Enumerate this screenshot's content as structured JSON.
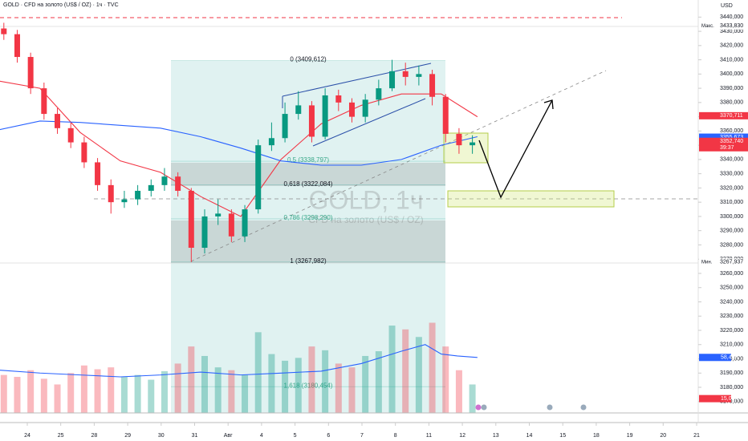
{
  "chart_data": {
    "type": "candlestick",
    "title": "GOLD · CFD на золото (US$ / OZ) · 1ч · TVC",
    "currency": "USD",
    "watermark": "GOLD, 1ч",
    "watermark_sub": "CFD на золото (US$ / OZ)",
    "up_color": "#089981",
    "down_color": "#f23645",
    "xlim": [
      -0.815,
      20.048
    ],
    "xticks": [
      {
        "value": 0,
        "label": "24"
      },
      {
        "value": 1,
        "label": "25"
      },
      {
        "value": 2,
        "label": "28"
      },
      {
        "value": 3,
        "label": "29"
      },
      {
        "value": 4,
        "label": "30"
      },
      {
        "value": 5,
        "label": "31"
      },
      {
        "value": 6,
        "label": "Авг"
      },
      {
        "value": 7,
        "label": "4"
      },
      {
        "value": 8,
        "label": "5"
      },
      {
        "value": 9,
        "label": "6"
      },
      {
        "value": 10,
        "label": "7"
      },
      {
        "value": 11,
        "label": "8"
      },
      {
        "value": 12,
        "label": "11"
      },
      {
        "value": 13,
        "label": "12"
      },
      {
        "value": 14,
        "label": "13"
      },
      {
        "value": 15,
        "label": "14"
      },
      {
        "value": 16,
        "label": "15"
      },
      {
        "value": 17,
        "label": "18"
      },
      {
        "value": 18,
        "label": "19"
      },
      {
        "value": 19,
        "label": "20"
      },
      {
        "value": 20,
        "label": "21"
      }
    ],
    "ylim": [
      3162,
      3452
    ],
    "yticks": [
      {
        "value": 3440,
        "label": "3440,000"
      },
      {
        "value": 3430,
        "label": "3430,000"
      },
      {
        "value": 3420,
        "label": "3420,000"
      },
      {
        "value": 3410,
        "label": "3410,000"
      },
      {
        "value": 3400,
        "label": "3400,000"
      },
      {
        "value": 3390,
        "label": "3390,000"
      },
      {
        "value": 3380,
        "label": "3380,000"
      },
      {
        "value": 3370,
        "label": "3370,000"
      },
      {
        "value": 3360,
        "label": "3360,000"
      },
      {
        "value": 3350,
        "label": "3350,000"
      },
      {
        "value": 3340,
        "label": "3340,000"
      },
      {
        "value": 3330,
        "label": "3330,000"
      },
      {
        "value": 3320,
        "label": "3320,000"
      },
      {
        "value": 3310,
        "label": "3310,000"
      },
      {
        "value": 3300,
        "label": "3300,000"
      },
      {
        "value": 3290,
        "label": "3290,000"
      },
      {
        "value": 3280,
        "label": "3280,000"
      },
      {
        "value": 3270,
        "label": "3270,000"
      },
      {
        "value": 3260,
        "label": "3260,000"
      },
      {
        "value": 3250,
        "label": "3250,000"
      },
      {
        "value": 3240,
        "label": "3240,000"
      },
      {
        "value": 3230,
        "label": "3230,000"
      },
      {
        "value": 3220,
        "label": "3220,000"
      },
      {
        "value": 3210,
        "label": "3210,000"
      },
      {
        "value": 3200,
        "label": "3200,000"
      },
      {
        "value": 3190,
        "label": "3190,000"
      },
      {
        "value": 3180,
        "label": "3180,000"
      },
      {
        "value": 3170,
        "label": "3170,000"
      }
    ],
    "x": [
      -0.7,
      -0.3,
      0.1,
      0.5,
      0.9,
      1.3,
      1.7,
      2.1,
      2.5,
      2.9,
      3.3,
      3.7,
      4.1,
      4.5,
      4.9,
      5.3,
      5.7,
      6.1,
      6.5,
      6.9,
      7.3,
      7.7,
      8.1,
      8.5,
      8.9,
      9.3,
      9.7,
      10.1,
      10.5,
      10.9,
      11.3,
      11.7,
      12.1,
      12.5,
      12.9,
      13.3
    ],
    "open": [
      3432,
      3428,
      3412,
      3390,
      3372,
      3362,
      3352,
      3338,
      3322,
      3310,
      3312,
      3318,
      3322,
      3328,
      3318,
      3278,
      3300,
      3302,
      3286,
      3305,
      3350,
      3355,
      3372,
      3378,
      3356,
      3385,
      3380,
      3370,
      3382,
      3390,
      3402,
      3398,
      3400,
      3384,
      3358,
      3350
    ],
    "high": [
      3436,
      3431,
      3415,
      3394,
      3376,
      3366,
      3356,
      3341,
      3326,
      3318,
      3322,
      3326,
      3334,
      3331,
      3320,
      3305,
      3312,
      3305,
      3308,
      3354,
      3366,
      3380,
      3388,
      3381,
      3390,
      3389,
      3383,
      3386,
      3396,
      3410,
      3408,
      3406,
      3403,
      3386,
      3362,
      3357
    ],
    "low": [
      3424,
      3408,
      3386,
      3368,
      3358,
      3348,
      3334,
      3318,
      3302,
      3306,
      3308,
      3314,
      3318,
      3314,
      3268,
      3274,
      3294,
      3282,
      3282,
      3302,
      3346,
      3352,
      3368,
      3352,
      3354,
      3374,
      3366,
      3366,
      3378,
      3388,
      3392,
      3392,
      3378,
      3352,
      3344,
      3344
    ],
    "close": [
      3428,
      3412,
      3390,
      3372,
      3362,
      3352,
      3338,
      3322,
      3310,
      3312,
      3318,
      3322,
      3328,
      3318,
      3278,
      3300,
      3302,
      3286,
      3305,
      3350,
      3355,
      3372,
      3378,
      3356,
      3385,
      3380,
      3370,
      3382,
      3390,
      3402,
      3398,
      3400,
      3384,
      3358,
      3350,
      3352
    ],
    "series": [
      {
        "color": "#f23645",
        "x": [
          -0.82,
          0.38,
          1.58,
          2.78,
          3.98,
          5.18,
          6.38,
          7.58,
          8.78,
          9.98,
          11.18,
          12.37,
          13.45
        ],
        "values": [
          3395,
          3390,
          3359,
          3339,
          3331,
          3314,
          3300,
          3340,
          3365,
          3378,
          3386,
          3386,
          3370
        ]
      },
      {
        "color": "#2962ff",
        "x": [
          -0.82,
          0.38,
          1.58,
          2.78,
          3.98,
          5.18,
          6.38,
          7.58,
          8.78,
          9.98,
          11.18,
          12.37,
          13.45
        ],
        "values": [
          3361,
          3367,
          3366,
          3364,
          3362,
          3356,
          3348,
          3339,
          3336,
          3336,
          3340,
          3350,
          3356
        ]
      }
    ],
    "price_labels": [
      {
        "value": 3433.83,
        "label": "3433,830",
        "color": "#ffffff",
        "text_color": "#131722",
        "prefix": "Макс."
      },
      {
        "value": 3370.711,
        "label": "3370,711",
        "color": "#f23645",
        "text_color": "#ffffff"
      },
      {
        "value": 3355.673,
        "label": "3355,673",
        "color": "#2962ff",
        "text_color": "#ffffff"
      },
      {
        "value": 3352.74,
        "label": "3352,740",
        "color": "#f23645",
        "text_color": "#ffffff",
        "timer": "39:37"
      },
      {
        "value": 3267.937,
        "label": "3267,937",
        "color": "#ffffff",
        "text_color": "#131722",
        "prefix": "Мин."
      }
    ],
    "fib_levels": [
      {
        "value": 3409.612,
        "label": "0 (3409,612)"
      },
      {
        "value": 3338.797,
        "label": "0,5 (3338,797)"
      },
      {
        "value": 3322.084,
        "label": "0,618 (3322,084)"
      },
      {
        "value": 3298.29,
        "label": "0,786 (3298,290)"
      },
      {
        "value": 3267.982,
        "label": "1 (3267,982)"
      },
      {
        "value": 3180.454,
        "label": "1,618 (3180,454)"
      }
    ],
    "volume": {
      "vlim": [
        0,
        114
      ],
      "up_color": "#089981",
      "down_color": "#f23645",
      "values": [
        40,
        38,
        45,
        36,
        30,
        42,
        50,
        46,
        48,
        38,
        40,
        35,
        44,
        52,
        70,
        60,
        48,
        45,
        40,
        85,
        62,
        55,
        58,
        70,
        66,
        52,
        48,
        60,
        65,
        92,
        88,
        80,
        95,
        70,
        45,
        30
      ],
      "ma_x": [
        -0.82,
        0.38,
        1.58,
        2.78,
        3.98,
        5.18,
        6.38,
        7.58,
        8.78,
        9.98,
        11.18,
        11.89,
        12.37,
        12.85,
        13.45
      ],
      "ma": [
        45,
        42,
        40,
        38,
        40,
        43,
        40,
        42,
        44,
        52,
        65,
        72,
        62,
        60,
        58.46
      ],
      "ma_color": "#2962ff",
      "labels": [
        {
          "value": 58.46,
          "label": "58,46K",
          "color": "#2962ff"
        },
        {
          "value": 15.07,
          "label": "15,07K",
          "color": "#f23645"
        }
      ]
    }
  }
}
